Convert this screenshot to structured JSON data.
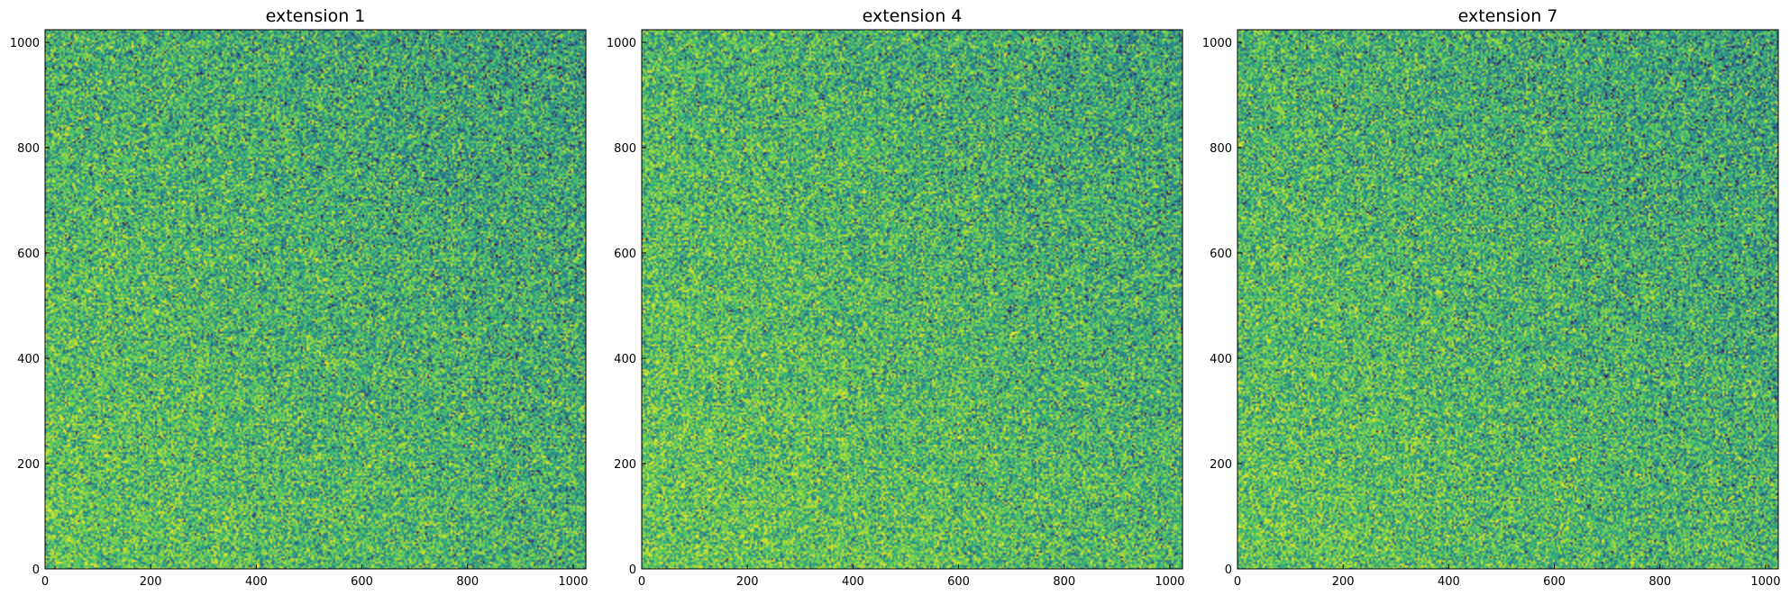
{
  "chart_data": [
    {
      "type": "heatmap",
      "title": "extension 1",
      "xlabel": "",
      "ylabel": "",
      "xlim": [
        0,
        1024
      ],
      "ylim": [
        0,
        1024
      ],
      "xticks": [
        0,
        200,
        400,
        600,
        800,
        1000
      ],
      "yticks": [
        0,
        200,
        400,
        600,
        800,
        1000
      ],
      "colormap": [
        "#440154",
        "#31688e",
        "#26828e",
        "#35b779",
        "#6ece58",
        "#b5de2b",
        "#fde725"
      ],
      "grid": false,
      "brightness_gradient": {
        "bottom_left": 0.62,
        "top_right": 0.42
      }
    },
    {
      "type": "heatmap",
      "title": "extension 4",
      "xlabel": "",
      "ylabel": "",
      "xlim": [
        0,
        1024
      ],
      "ylim": [
        0,
        1024
      ],
      "xticks": [
        0,
        200,
        400,
        600,
        800,
        1000
      ],
      "yticks": [
        0,
        200,
        400,
        600,
        800,
        1000
      ],
      "colormap": [
        "#440154",
        "#31688e",
        "#26828e",
        "#35b779",
        "#6ece58",
        "#b5de2b",
        "#fde725"
      ],
      "grid": false,
      "brightness_gradient": {
        "bottom_left": 0.64,
        "top_right": 0.44
      }
    },
    {
      "type": "heatmap",
      "title": "extension 7",
      "xlabel": "",
      "ylabel": "",
      "xlim": [
        0,
        1024
      ],
      "ylim": [
        0,
        1024
      ],
      "xticks": [
        0,
        200,
        400,
        600,
        800,
        1000
      ],
      "yticks": [
        0,
        200,
        400,
        600,
        800,
        1000
      ],
      "colormap": [
        "#440154",
        "#31688e",
        "#26828e",
        "#35b779",
        "#6ece58",
        "#b5de2b",
        "#fde725"
      ],
      "grid": false,
      "brightness_gradient": {
        "bottom_left": 0.62,
        "top_right": 0.42
      }
    }
  ]
}
